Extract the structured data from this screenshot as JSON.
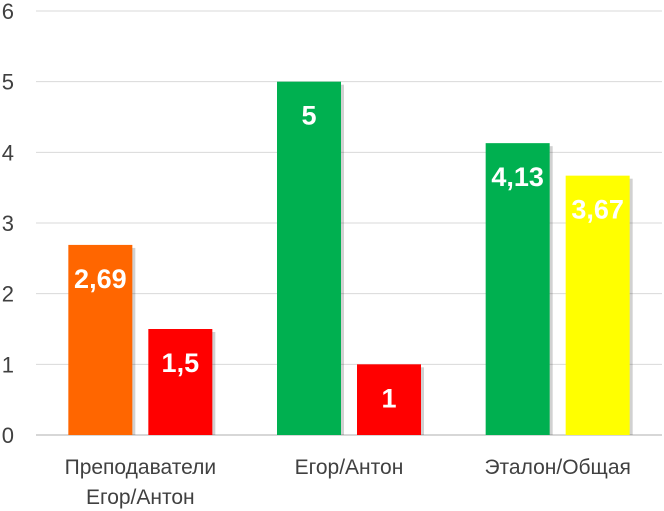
{
  "chart_data": {
    "type": "bar",
    "title": "",
    "xlabel": "",
    "ylabel": "",
    "ylim": [
      0,
      6
    ],
    "yticks": [
      "0",
      "1",
      "2",
      "3",
      "4",
      "5",
      "6"
    ],
    "grid": true,
    "legend": "none",
    "groups": [
      {
        "label_lines": [
          "Преподаватели",
          "Егор/Антон"
        ],
        "bars": [
          {
            "value": 2.69,
            "label": "2,69",
            "color": "#FF6600"
          },
          {
            "value": 1.5,
            "label": "1,5",
            "color": "#FF0000"
          }
        ]
      },
      {
        "label_lines": [
          "Егор/Антон"
        ],
        "bars": [
          {
            "value": 5,
            "label": "5",
            "color": "#00B050"
          },
          {
            "value": 1,
            "label": "1",
            "color": "#FF0000"
          }
        ]
      },
      {
        "label_lines": [
          "Эталон/Общая"
        ],
        "bars": [
          {
            "value": 4.13,
            "label": "4,13",
            "color": "#00B050"
          },
          {
            "value": 3.67,
            "label": "3,67",
            "color": "#FFFF00"
          }
        ]
      }
    ]
  }
}
